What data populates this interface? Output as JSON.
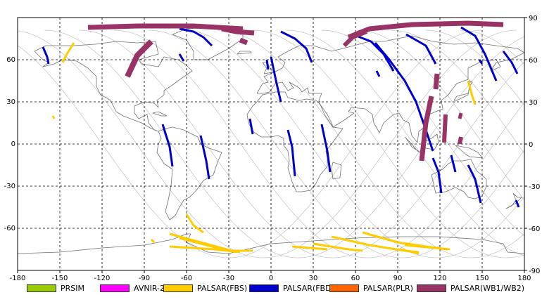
{
  "map": {
    "lon_range": [
      -180,
      180
    ],
    "lat_range": [
      -90,
      90
    ],
    "x_ticks": [
      "-180",
      "-150",
      "-120",
      "-90",
      "-60",
      "-30",
      "0",
      "30",
      "60",
      "90",
      "120",
      "150",
      "180"
    ],
    "y_ticks_left": [
      "60",
      "30",
      "0",
      "-30",
      "-60"
    ],
    "y_ticks_right": [
      "90",
      "60",
      "30",
      "0",
      "-30",
      "-60",
      "-90"
    ],
    "grid": "dashed",
    "colors": {
      "frame": "#000000",
      "grid": "#000000",
      "orbit": "#c8c8c8",
      "coast": "#707070"
    },
    "swaths": [
      {
        "type": "PALSAR(FBD)",
        "points": [
          [
            -162,
            69
          ],
          [
            -159,
            62
          ],
          [
            -158,
            57
          ]
        ]
      },
      {
        "type": "PALSAR(FBD)",
        "points": [
          [
            -65,
            82
          ],
          [
            -55,
            80
          ],
          [
            -48,
            76
          ],
          [
            -42,
            70
          ]
        ]
      },
      {
        "type": "PALSAR(FBD)",
        "points": [
          [
            7,
            80
          ],
          [
            17,
            75
          ],
          [
            25,
            68
          ],
          [
            29,
            58
          ]
        ]
      },
      {
        "type": "PALSAR(FBD)",
        "points": [
          [
            -77,
            14
          ],
          [
            -72,
            -2
          ],
          [
            -70,
            -16
          ]
        ]
      },
      {
        "type": "PALSAR(FBD)",
        "points": [
          [
            -50,
            6
          ],
          [
            -46,
            -12
          ],
          [
            -44,
            -25
          ]
        ]
      },
      {
        "type": "PALSAR(FBD)",
        "points": [
          [
            0,
            62
          ],
          [
            4,
            43
          ],
          [
            7,
            30
          ]
        ]
      },
      {
        "type": "PALSAR(FBD)",
        "points": [
          [
            -15,
            18
          ],
          [
            -13,
            7
          ]
        ]
      },
      {
        "type": "PALSAR(FBD)",
        "points": [
          [
            12,
            10
          ],
          [
            15,
            -2
          ],
          [
            17,
            -23
          ]
        ]
      },
      {
        "type": "PALSAR(FBD)",
        "points": [
          [
            36,
            14
          ],
          [
            40,
            -5
          ],
          [
            42,
            -20
          ]
        ]
      },
      {
        "type": "PALSAR(FBD)",
        "points": [
          [
            58,
            78
          ],
          [
            71,
            73
          ],
          [
            80,
            64
          ],
          [
            87,
            52
          ]
        ]
      },
      {
        "type": "PALSAR(FBD)",
        "points": [
          [
            96,
            78
          ],
          [
            110,
            70
          ],
          [
            117,
            57
          ]
        ]
      },
      {
        "type": "PALSAR(FBD)",
        "points": [
          [
            74,
            72
          ],
          [
            84,
            60
          ],
          [
            95,
            45
          ],
          [
            103,
            30
          ],
          [
            110,
            10
          ],
          [
            115,
            -5
          ]
        ]
      },
      {
        "type": "PALSAR(FBD)",
        "points": [
          [
            115,
            -10
          ],
          [
            119,
            -20
          ],
          [
            121,
            -35
          ]
        ]
      },
      {
        "type": "PALSAR(FBD)",
        "points": [
          [
            128,
            -8
          ],
          [
            131,
            -20
          ]
        ]
      },
      {
        "type": "PALSAR(FBD)",
        "points": [
          [
            135,
            83
          ],
          [
            145,
            77
          ],
          [
            152,
            64
          ],
          [
            160,
            45
          ]
        ]
      },
      {
        "type": "PALSAR(FBD)",
        "points": [
          [
            140,
            -15
          ],
          [
            145,
            -25
          ],
          [
            149,
            -42
          ]
        ]
      },
      {
        "type": "PALSAR(FBD)",
        "points": [
          [
            165,
            66
          ],
          [
            171,
            58
          ],
          [
            175,
            50
          ]
        ]
      },
      {
        "type": "PALSAR(FBD)",
        "points": [
          [
            174,
            -40
          ],
          [
            176,
            -45
          ]
        ]
      },
      {
        "type": "PALSAR(FBD)",
        "points": [
          [
            -3,
            60
          ],
          [
            -2,
            53
          ]
        ]
      },
      {
        "type": "PALSAR(FBD)",
        "points": [
          [
            75,
            52
          ],
          [
            77,
            48
          ]
        ]
      },
      {
        "type": "PALSAR(FBD)",
        "points": [
          [
            -65,
            64
          ],
          [
            -62,
            59
          ]
        ]
      },
      {
        "type": "PALSAR(FBD)",
        "points": [
          [
            148,
            60
          ],
          [
            150,
            57
          ]
        ]
      },
      {
        "type": "PALSAR(FBS)",
        "points": [
          [
            -140,
            72
          ],
          [
            -145,
            64
          ],
          [
            -148,
            58
          ]
        ]
      },
      {
        "type": "PALSAR(FBS)",
        "points": [
          [
            -155,
            20
          ],
          [
            -154,
            18
          ]
        ]
      },
      {
        "type": "PALSAR(FBS)",
        "points": [
          [
            -60,
            -50
          ],
          [
            -55,
            -58
          ],
          [
            -48,
            -63
          ]
        ]
      },
      {
        "type": "PALSAR(FBS)",
        "points": [
          [
            -72,
            -64
          ],
          [
            -50,
            -70
          ],
          [
            -28,
            -76
          ],
          [
            -13,
            -76
          ]
        ]
      },
      {
        "type": "PALSAR(FBS)",
        "points": [
          [
            -72,
            -73
          ],
          [
            -40,
            -75
          ],
          [
            -22,
            -77
          ]
        ]
      },
      {
        "type": "PALSAR(FBS)",
        "points": [
          [
            -65,
            -67
          ],
          [
            -38,
            -74
          ],
          [
            -25,
            -77
          ]
        ]
      },
      {
        "type": "PALSAR(FBS)",
        "points": [
          [
            15,
            -73
          ],
          [
            40,
            -75
          ]
        ]
      },
      {
        "type": "PALSAR(FBS)",
        "points": [
          [
            30,
            -71
          ],
          [
            55,
            -75
          ],
          [
            65,
            -76
          ]
        ]
      },
      {
        "type": "PALSAR(FBS)",
        "points": [
          [
            43,
            -66
          ],
          [
            70,
            -72
          ],
          [
            95,
            -76
          ],
          [
            105,
            -77
          ]
        ]
      },
      {
        "type": "PALSAR(FBS)",
        "points": [
          [
            65,
            -63
          ],
          [
            90,
            -70
          ],
          [
            110,
            -73
          ],
          [
            125,
            -75
          ]
        ]
      },
      {
        "type": "PALSAR(FBS)",
        "points": [
          [
            95,
            -72
          ],
          [
            127,
            -75
          ]
        ]
      },
      {
        "type": "PALSAR(FBS)",
        "points": [
          [
            140,
            45
          ],
          [
            143,
            34
          ],
          [
            145,
            28
          ]
        ]
      },
      {
        "type": "PALSAR(FBS)",
        "points": [
          [
            -85,
            -68
          ],
          [
            -83,
            -70
          ]
        ]
      },
      {
        "type": "PALSAR(FBS)",
        "points": [
          [
            92,
            -75
          ],
          [
            105,
            -78
          ]
        ]
      },
      {
        "type": "PALSAR(WB1/WB2)",
        "width": 7,
        "points": [
          [
            -130,
            83
          ],
          [
            -95,
            84
          ],
          [
            -55,
            84
          ],
          [
            -20,
            82
          ]
        ]
      },
      {
        "type": "PALSAR(WB1/WB2)",
        "width": 8,
        "points": [
          [
            -85,
            73
          ],
          [
            -95,
            63
          ],
          [
            -102,
            48
          ]
        ]
      },
      {
        "type": "PALSAR(WB1/WB2)",
        "width": 7,
        "points": [
          [
            -35,
            82
          ],
          [
            -25,
            80
          ],
          [
            -12,
            79
          ]
        ]
      },
      {
        "type": "PALSAR(WB1/WB2)",
        "width": 7,
        "points": [
          [
            -22,
            74
          ],
          [
            -17,
            72
          ]
        ]
      },
      {
        "type": "PALSAR(WB1/WB2)",
        "width": 7,
        "points": [
          [
            55,
            76
          ],
          [
            70,
            82
          ],
          [
            100,
            85
          ],
          [
            140,
            86
          ],
          [
            165,
            85
          ]
        ]
      },
      {
        "type": "PALSAR(WB1/WB2)",
        "width": 6,
        "points": [
          [
            52,
            70
          ],
          [
            58,
            76
          ],
          [
            68,
            80
          ]
        ]
      },
      {
        "type": "PALSAR(WB1/WB2)",
        "width": 7,
        "points": [
          [
            118,
            50
          ],
          [
            117,
            39
          ]
        ]
      },
      {
        "type": "PALSAR(WB1/WB2)",
        "width": 7,
        "points": [
          [
            114,
            34
          ],
          [
            110,
            15
          ],
          [
            107,
            -12
          ]
        ]
      },
      {
        "type": "PALSAR(WB1/WB2)",
        "width": 6,
        "points": [
          [
            124,
            21
          ],
          [
            123,
            1
          ]
        ]
      },
      {
        "type": "PALSAR(WB1/WB2)",
        "width": 5,
        "points": [
          [
            135,
            22
          ],
          [
            134,
            18
          ]
        ]
      },
      {
        "type": "PALSAR(WB1/WB2)",
        "width": 6,
        "points": [
          [
            135,
            5
          ],
          [
            134,
            0
          ]
        ]
      }
    ]
  },
  "legend": [
    {
      "label": "PRSIM",
      "color": "#99cc00"
    },
    {
      "label": "AVNIR-2",
      "color": "#ff00ff"
    },
    {
      "label": "PALSAR(FBS)",
      "color": "#ffcc00"
    },
    {
      "label": "PALSAR(FBD)",
      "color": "#0000cc"
    },
    {
      "label": "PALSAR(PLR)",
      "color": "#ff6600"
    },
    {
      "label": "PALSAR(WB1/WB2)",
      "color": "#993366"
    }
  ]
}
